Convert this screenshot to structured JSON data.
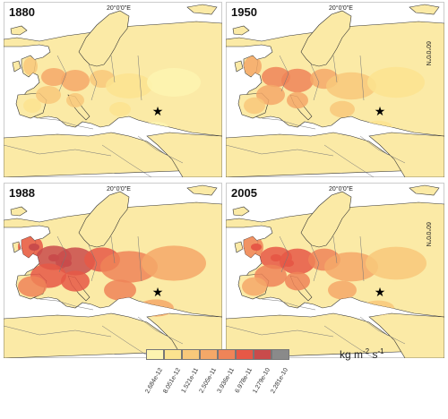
{
  "panels": [
    {
      "year": "1880",
      "intensity": 1
    },
    {
      "year": "1950",
      "intensity": 2
    },
    {
      "year": "1988",
      "intensity": 4
    },
    {
      "year": "2005",
      "intensity": 3
    }
  ],
  "axis": {
    "lon_label": "20°0'0\"E",
    "lat_label": "60°0'0\"N"
  },
  "marker": {
    "symbol": "★"
  },
  "legend": {
    "ticks": [
      "2.684e-12",
      "8.051e-12",
      "1.521e-11",
      "2.505e-11",
      "3.936e-11",
      "6.978e-11",
      "1.279e-10",
      "2.281e-10"
    ],
    "colors": [
      "#fdf4b0",
      "#fbe38f",
      "#f8c87a",
      "#f4a868",
      "#ef8458",
      "#e65846",
      "#c94b4b",
      "#8a8a8a"
    ],
    "unit_base": "kg m",
    "unit_exp1": "-2",
    "unit_mid": " s",
    "unit_exp2": "-1"
  },
  "colors": {
    "background": "#ffffff",
    "land": "#fbeaa6",
    "coast": "#333333",
    "border": "#777777"
  }
}
